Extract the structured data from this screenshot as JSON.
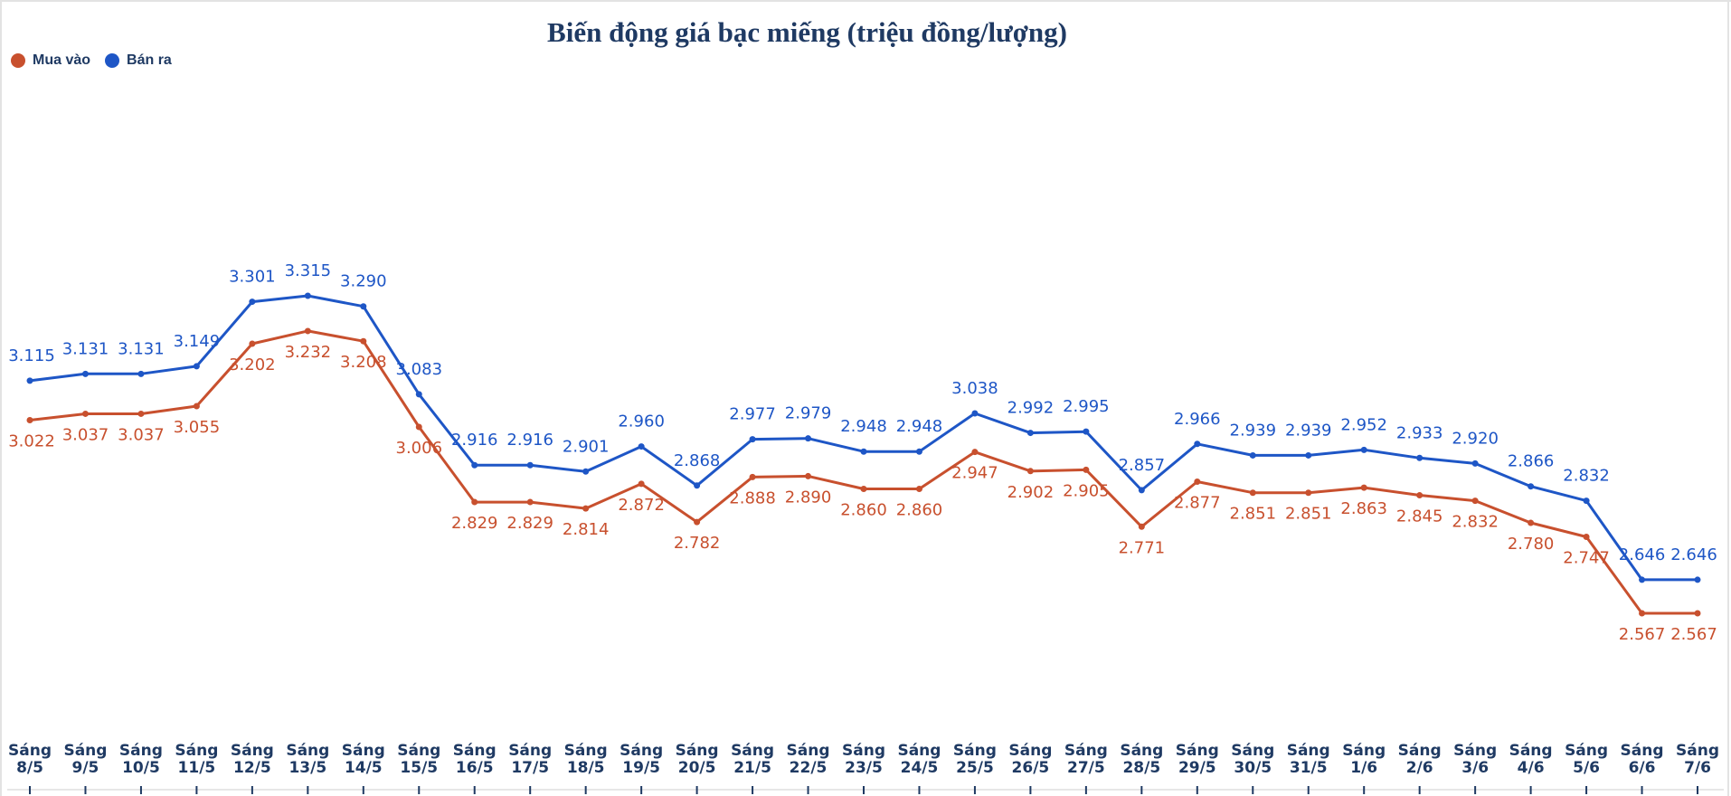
{
  "chart_data": {
    "type": "line",
    "title": "Biến động giá bạc miếng (triệu đồng/lượng)",
    "categories": [
      "Sáng 8/5",
      "Sáng 9/5",
      "Sáng 10/5",
      "Sáng 11/5",
      "Sáng 12/5",
      "Sáng 13/5",
      "Sáng 14/5",
      "Sáng 15/5",
      "Sáng 16/5",
      "Sáng 17/5",
      "Sáng 18/5",
      "Sáng 19/5",
      "Sáng 20/5",
      "Sáng 21/5",
      "Sáng 22/5",
      "Sáng 23/5",
      "Sáng 24/5",
      "Sáng 25/5",
      "Sáng 26/5",
      "Sáng 27/5",
      "Sáng 28/5",
      "Sáng 29/5",
      "Sáng 30/5",
      "Sáng 31/5",
      "Sáng 1/6",
      "Sáng 2/6",
      "Sáng 3/6",
      "Sáng 4/6",
      "Sáng 5/6",
      "Sáng 6/6",
      "Sáng 7/6"
    ],
    "series": [
      {
        "name": "Mua vào",
        "color": "#c8502e",
        "values": [
          3.022,
          3.037,
          3.037,
          3.055,
          3.202,
          3.232,
          3.208,
          3.006,
          2.829,
          2.829,
          2.814,
          2.872,
          2.782,
          2.888,
          2.89,
          2.86,
          2.86,
          2.947,
          2.902,
          2.905,
          2.771,
          2.877,
          2.851,
          2.851,
          2.863,
          2.845,
          2.832,
          2.78,
          2.747,
          2.567,
          2.567
        ],
        "labels": [
          "3.022",
          "3.037",
          "3.037",
          "3.055",
          "3.202",
          "3.232",
          "3.208",
          "3.006",
          "2.829",
          "2.829",
          "2.814",
          "2.872",
          "2.782",
          "2.888",
          "2.890",
          "2.860",
          "2.860",
          "2.947",
          "2.902",
          "2.905",
          "2.771",
          "2.877",
          "2.851",
          "2.851",
          "2.863",
          "2.845",
          "2.832",
          "2.780",
          "2.747",
          "2.567",
          "2.567"
        ]
      },
      {
        "name": "Bán ra",
        "color": "#1e56c6",
        "values": [
          3.115,
          3.131,
          3.131,
          3.149,
          3.301,
          3.315,
          3.29,
          3.083,
          2.916,
          2.916,
          2.901,
          2.96,
          2.868,
          2.977,
          2.979,
          2.948,
          2.948,
          3.038,
          2.992,
          2.995,
          2.857,
          2.966,
          2.939,
          2.939,
          2.952,
          2.933,
          2.92,
          2.866,
          2.832,
          2.646,
          2.646
        ],
        "labels": [
          "3.115",
          "3.131",
          "3.131",
          "3.149",
          "3.301",
          "3.315",
          "3.290",
          "3.083",
          "2.916",
          "2.916",
          "2.901",
          "2.960",
          "2.868",
          "2.977",
          "2.979",
          "2.948",
          "2.948",
          "3.038",
          "2.992",
          "2.995",
          "2.857",
          "2.966",
          "2.939",
          "2.939",
          "2.952",
          "2.933",
          "2.920",
          "2.866",
          "2.832",
          "2.646",
          "2.646"
        ]
      }
    ],
    "legend_position": "top-left",
    "grid": false,
    "xlabel": "",
    "ylabel": ""
  }
}
